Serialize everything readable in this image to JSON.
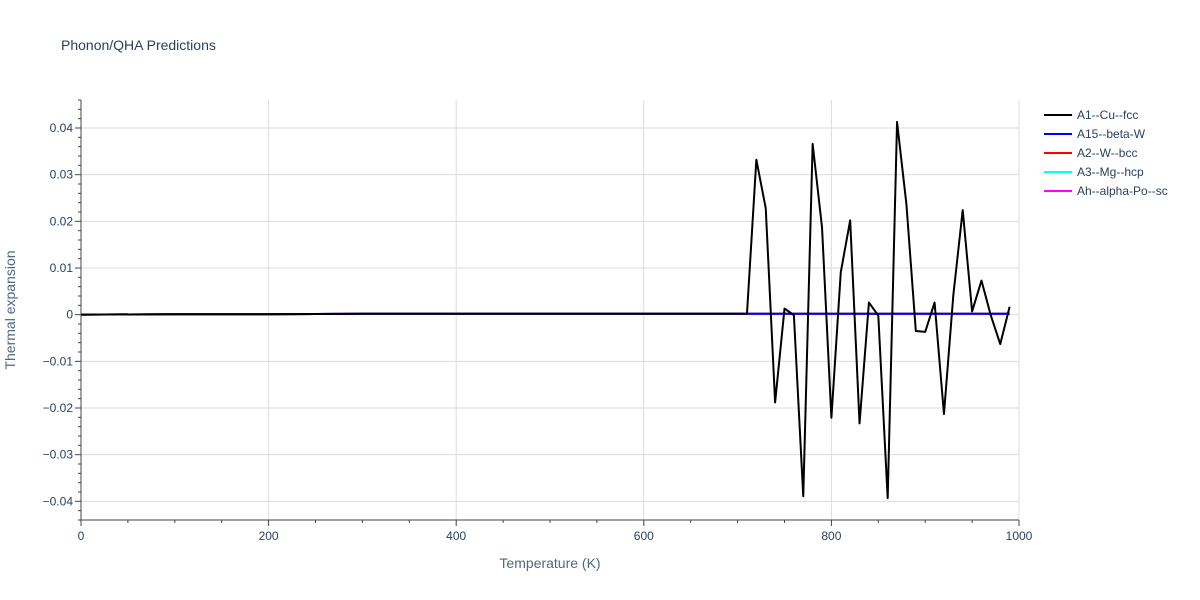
{
  "chart_data": {
    "type": "line",
    "title": "Phonon/QHA Predictions",
    "xlabel": "Temperature (K)",
    "ylabel": "Thermal expansion",
    "xlim": [
      0,
      1000
    ],
    "ylim": [
      -0.044,
      0.046
    ],
    "x_ticks": [
      0,
      200,
      400,
      600,
      800,
      1000
    ],
    "x_tick_labels": [
      "0",
      "200",
      "400",
      "600",
      "800",
      "1000"
    ],
    "y_ticks": [
      -0.04,
      -0.03,
      -0.02,
      -0.01,
      0,
      0.01,
      0.02,
      0.03,
      0.04
    ],
    "y_tick_labels": [
      "−0.04",
      "−0.03",
      "−0.02",
      "−0.01",
      "0",
      "0.01",
      "0.02",
      "0.03",
      "0.04"
    ],
    "grid": true,
    "legend_position": "right",
    "series": [
      {
        "name": "A1--Cu--fcc",
        "color": "#000000",
        "x": [
          0,
          100,
          200,
          300,
          400,
          500,
          600,
          700,
          710,
          720,
          730,
          740,
          750,
          760,
          770,
          780,
          790,
          800,
          810,
          820,
          830,
          840,
          850,
          860,
          870,
          880,
          890,
          900,
          910,
          920,
          930,
          940,
          950,
          960,
          970,
          980,
          990
        ],
        "y": [
          0,
          0.0001,
          0.0001,
          0.0002,
          0.0002,
          0.0002,
          0.0002,
          0.0002,
          0.0002,
          0.0332,
          0.0228,
          -0.0188,
          0.0013,
          -0.0001,
          -0.0389,
          0.0366,
          0.0187,
          -0.0221,
          0.0091,
          0.0202,
          -0.0233,
          0.0026,
          -0.0002,
          -0.0393,
          0.0413,
          0.0236,
          -0.0035,
          -0.0037,
          0.0026,
          -0.0213,
          0.0042,
          0.0224,
          0.0007,
          0.0073,
          -0.0002,
          -0.0063,
          0.0017
        ]
      },
      {
        "name": "A15--beta-W",
        "color": "#0000ff",
        "x": [
          0,
          100,
          200,
          300,
          400,
          500,
          600,
          700,
          800,
          900,
          990
        ],
        "y": [
          0,
          0.0001,
          0.0001,
          0.0002,
          0.0002,
          0.0002,
          0.0002,
          0.0002,
          0.0002,
          0.0002,
          0.0002
        ]
      },
      {
        "name": "A2--W--bcc",
        "color": "#ff0000",
        "x": [
          0,
          100,
          200,
          300,
          400,
          500,
          600,
          700,
          800,
          900,
          990
        ],
        "y": [
          0,
          0.0001,
          0.0001,
          0.0002,
          0.0002,
          0.0002,
          0.0002,
          0.0002,
          0.0002,
          0.0002,
          0.0002
        ]
      },
      {
        "name": "A3--Mg--hcp",
        "color": "#00ffff",
        "x": [
          0,
          100,
          200,
          300,
          400,
          500,
          600,
          700,
          800,
          900,
          990
        ],
        "y": [
          0,
          0.0001,
          0.0001,
          0.0002,
          0.0002,
          0.0002,
          0.0002,
          0.0002,
          0.0002,
          0.0002,
          0.0002
        ]
      },
      {
        "name": "Ah--alpha-Po--sc",
        "color": "#ff00ff",
        "x": [
          0,
          100,
          200,
          300,
          400,
          500,
          600,
          700,
          800,
          900,
          990
        ],
        "y": [
          0,
          0.0001,
          0.0001,
          0.0002,
          0.0002,
          0.0002,
          0.0002,
          0.0002,
          0.0002,
          0.0002,
          0.0002
        ]
      }
    ]
  }
}
